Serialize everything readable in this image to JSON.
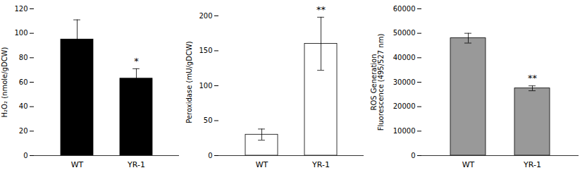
{
  "chart_data": [
    {
      "type": "bar",
      "categories": [
        "WT",
        "YR-1"
      ],
      "values": [
        95,
        63
      ],
      "errors": [
        16,
        8
      ],
      "color": "#000000",
      "ylabel": "H₂O₂ (nmole/gDCW)",
      "ylim": [
        0,
        120
      ],
      "yticks": [
        0,
        20,
        40,
        60,
        80,
        100,
        120
      ],
      "annotations": [
        {
          "x": "YR-1",
          "text": "*"
        }
      ]
    },
    {
      "type": "bar",
      "categories": [
        "WT",
        "YR-1"
      ],
      "values": [
        30,
        160
      ],
      "errors": [
        8,
        38
      ],
      "color": "#ffffff",
      "ylabel": "Peroxidase (mU/gDCW)",
      "ylim": [
        0,
        210
      ],
      "yticks": [
        0,
        50,
        100,
        150,
        200
      ],
      "annotations": [
        {
          "x": "YR-1",
          "text": "**"
        }
      ]
    },
    {
      "type": "bar",
      "categories": [
        "WT",
        "YR-1"
      ],
      "values": [
        48000,
        27500
      ],
      "errors": [
        2000,
        1000
      ],
      "color": "#999999",
      "ylabel": "ROS Generation\nFluorescence (495/527 nm)",
      "ylim": [
        0,
        60000
      ],
      "yticks": [
        0,
        10000,
        20000,
        30000,
        40000,
        50000,
        60000
      ],
      "annotations": [
        {
          "x": "YR-1",
          "text": "**"
        }
      ]
    }
  ]
}
